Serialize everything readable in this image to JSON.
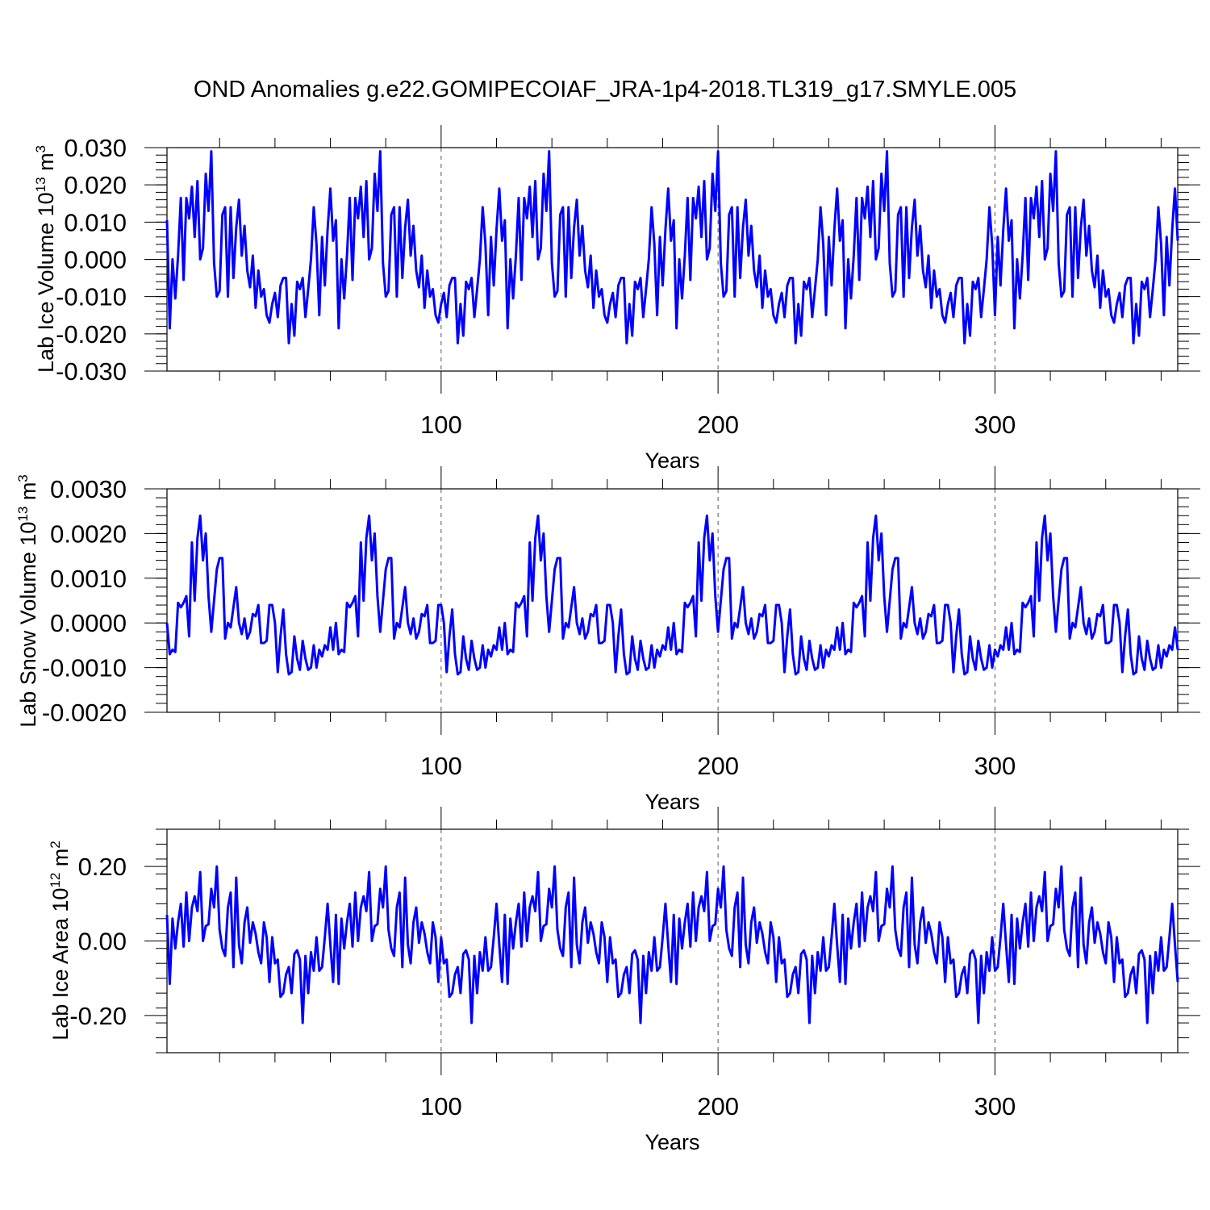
{
  "title": "OND Anomalies g.e22.GOMIPECOIAF_JRA-1p4-2018.TL319_g17.SMYLE.005",
  "series_color": "#0000ff",
  "chart_data": [
    {
      "type": "line",
      "ylabel_main": "Lab Ice Volume 10",
      "ylabel_exp": "13",
      "ylabel_unit": " m",
      "ylabel_unit_exp": "3",
      "xlabel": "Years",
      "xlim": [
        1,
        366
      ],
      "ylim": [
        -0.03,
        0.03
      ],
      "xticks": [
        100,
        200,
        300
      ],
      "xtick_labels": [
        "100",
        "200",
        "300"
      ],
      "yticks": [
        -0.03,
        -0.02,
        -0.01,
        0.0,
        0.01,
        0.02,
        0.03
      ],
      "ytick_labels": [
        "-0.030",
        "-0.020",
        "-0.010",
        "0.000",
        "0.010",
        "0.020",
        "0.030"
      ],
      "x_start": 1,
      "pattern_repeat": 61,
      "values": [
        0.0105,
        -0.0185,
        0.0,
        -0.0105,
        0.001,
        0.0165,
        -0.0055,
        0.0165,
        0.011,
        0.0195,
        0.006,
        0.021,
        0.0,
        0.003,
        0.023,
        0.013,
        0.029,
        -0.001,
        -0.01,
        -0.0085,
        0.012,
        0.014,
        -0.01,
        0.014,
        -0.005,
        0.0085,
        0.016,
        0.001,
        0.009,
        -0.003,
        -0.0075,
        0.001,
        -0.013,
        -0.003,
        -0.01,
        -0.008,
        -0.015,
        -0.017,
        -0.012,
        -0.009,
        -0.0155,
        -0.007,
        -0.005,
        -0.005,
        -0.0225,
        -0.012,
        -0.0205,
        -0.006,
        -0.008,
        -0.005,
        -0.0155,
        -0.008,
        0.0,
        0.014,
        0.004,
        -0.015,
        0.006,
        -0.007,
        0.008,
        0.019,
        0.005
      ]
    },
    {
      "type": "line",
      "ylabel_main": "Lab Snow Volume 10",
      "ylabel_exp": "13",
      "ylabel_unit": " m",
      "ylabel_unit_exp": "3",
      "xlabel": "Years",
      "xlim": [
        1,
        366
      ],
      "ylim": [
        -0.002,
        0.003
      ],
      "xticks": [
        100,
        200,
        300
      ],
      "xtick_labels": [
        "100",
        "200",
        "300"
      ],
      "yticks": [
        -0.002,
        -0.001,
        0.0,
        0.001,
        0.002,
        0.003
      ],
      "ytick_labels": [
        "-0.0020",
        "-0.0010",
        "0.0000",
        "0.0010",
        "0.0020",
        "0.0030"
      ],
      "x_start": 1,
      "pattern_repeat": 61,
      "values": [
        0.0,
        -0.0007,
        -0.0006,
        -0.00065,
        0.00045,
        0.00035,
        0.00045,
        0.0006,
        -0.0003,
        0.0018,
        0.0005,
        0.0019,
        0.0024,
        0.0014,
        0.002,
        0.0006,
        -0.0002,
        0.0005,
        0.0012,
        0.00145,
        0.00145,
        -0.00035,
        0.0,
        -0.0001,
        0.00035,
        0.0008,
        0.0,
        -0.00025,
        0.0001,
        -0.00035,
        -0.0002,
        0.0002,
        0.00015,
        0.0004,
        -0.00045,
        -0.00045,
        -0.0004,
        0.0004,
        0.0004,
        0.0,
        -0.0011,
        -0.0003,
        0.0003,
        -0.0007,
        -0.00115,
        -0.0011,
        -0.0003,
        -0.0008,
        -0.00105,
        -0.0004,
        -0.0008,
        -0.00105,
        -0.001,
        -0.0005,
        -0.001,
        -0.0006,
        -0.00075,
        -0.0005,
        -0.0006,
        -0.0001,
        -0.0006
      ]
    },
    {
      "type": "line",
      "ylabel_main": "Lab Ice Area 10",
      "ylabel_exp": "12",
      "ylabel_unit": " m",
      "ylabel_unit_exp": "2",
      "xlabel": "Years",
      "xlim": [
        1,
        366
      ],
      "ylim": [
        -0.3,
        0.3
      ],
      "xticks": [
        100,
        200,
        300
      ],
      "xtick_labels": [
        "100",
        "200",
        "300"
      ],
      "yticks": [
        -0.2,
        0.0,
        0.2
      ],
      "ytick_labels": [
        "-0.20",
        "0.00",
        "0.20"
      ],
      "x_start": 1,
      "pattern_repeat": 61,
      "values": [
        0.07,
        -0.115,
        0.06,
        -0.02,
        0.05,
        0.1,
        -0.015,
        0.13,
        0.0,
        0.09,
        0.12,
        0.08,
        0.185,
        0.0,
        0.04,
        0.045,
        0.14,
        0.09,
        0.2,
        0.03,
        -0.02,
        -0.04,
        0.09,
        0.13,
        -0.07,
        0.17,
        -0.01,
        -0.06,
        0.05,
        0.09,
        -0.005,
        0.05,
        0.02,
        -0.03,
        -0.06,
        0.05,
        0.01,
        -0.11,
        0.01,
        -0.06,
        -0.05,
        -0.15,
        -0.14,
        -0.09,
        -0.07,
        -0.14,
        -0.035,
        -0.025,
        -0.05,
        -0.22,
        -0.04,
        -0.14,
        -0.03,
        -0.08,
        0.01,
        -0.08,
        -0.07,
        0.01,
        0.1,
        -0.01,
        -0.11
      ]
    }
  ]
}
